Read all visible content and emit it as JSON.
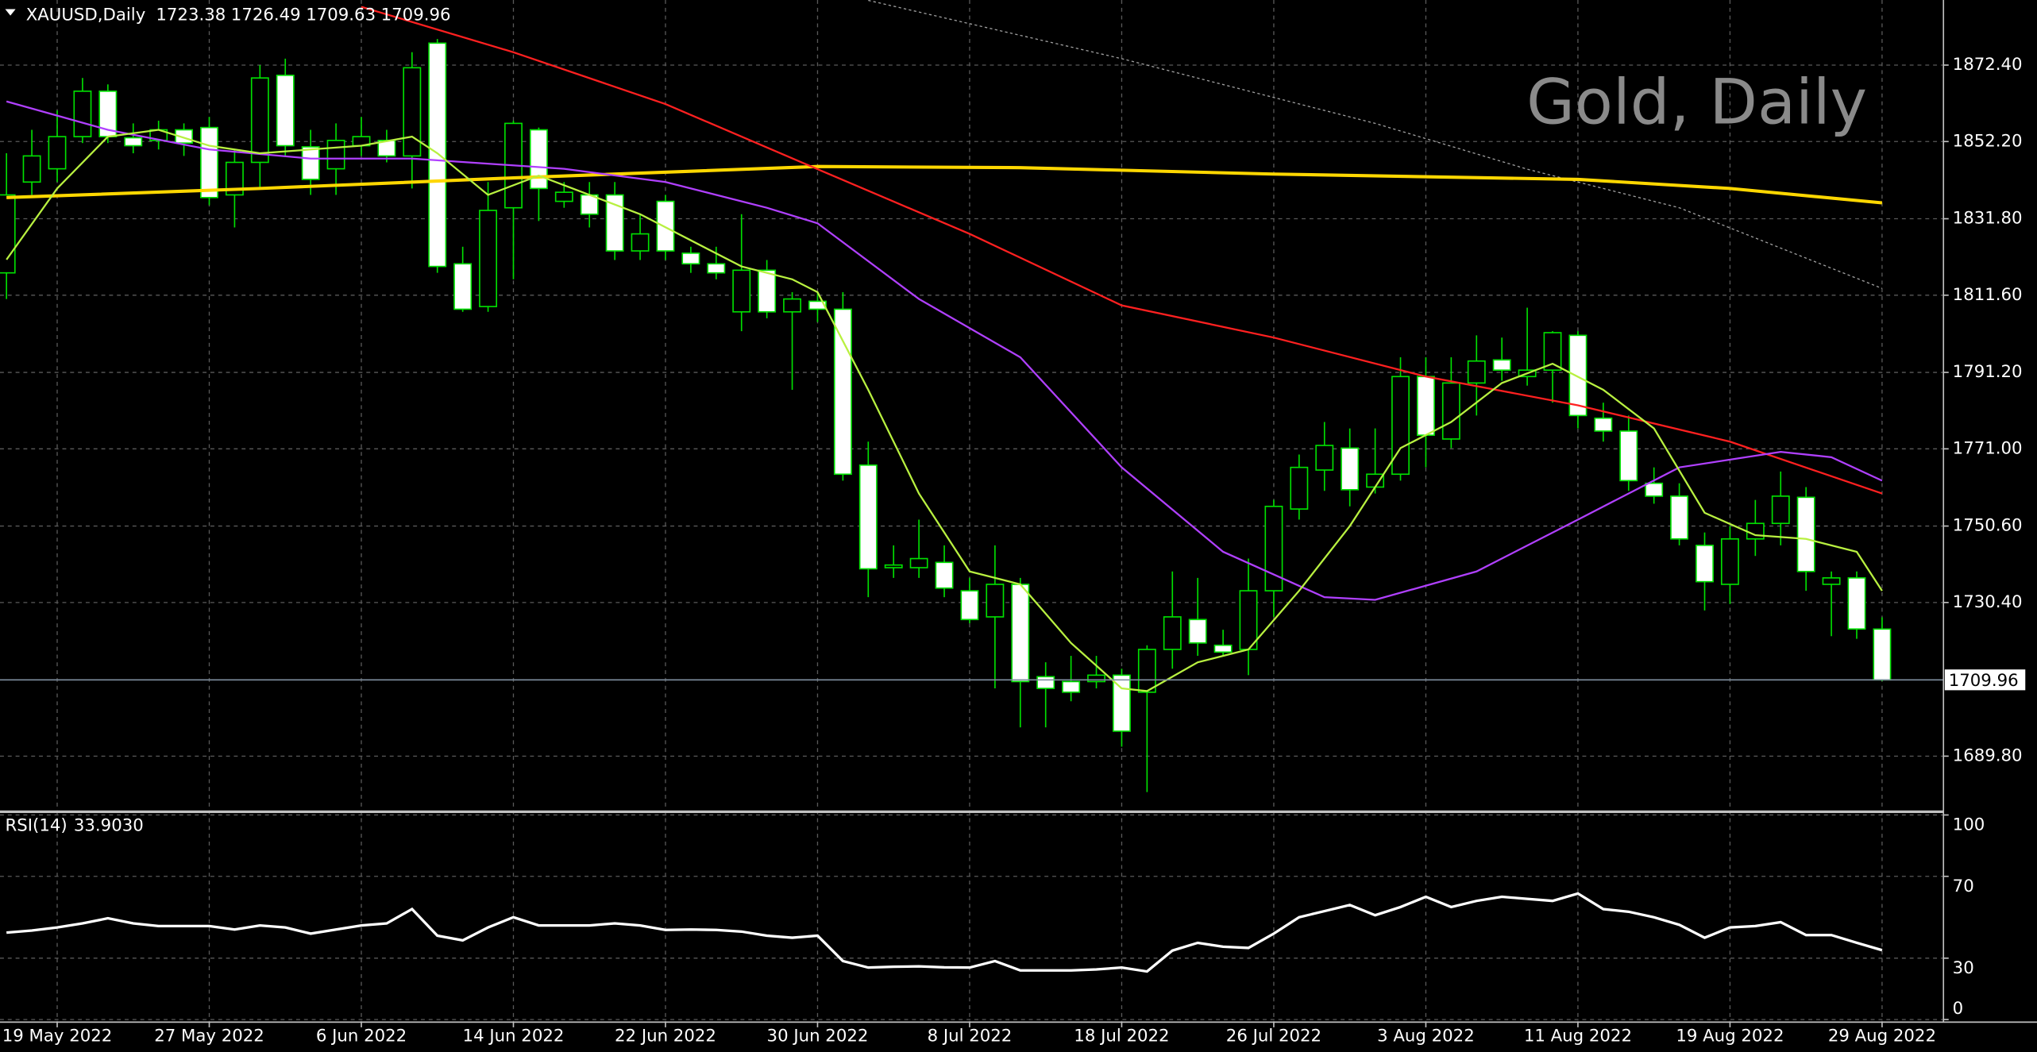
{
  "chart_data": [
    {
      "type": "candlestick",
      "title": "XAUUSD,Daily",
      "watermark": "Gold, Daily",
      "categories": [
        null,
        null,
        "19 May 2022",
        null,
        null,
        null,
        null,
        null,
        "27 May 2022",
        null,
        null,
        null,
        null,
        null,
        "6 Jun 2022",
        null,
        null,
        null,
        null,
        null,
        "14 Jun 2022",
        null,
        null,
        null,
        null,
        null,
        "22 Jun 2022",
        null,
        null,
        null,
        null,
        null,
        "30 Jun 2022",
        null,
        null,
        null,
        null,
        null,
        "8 Jul 2022",
        null,
        null,
        null,
        null,
        null,
        "18 Jul 2022",
        null,
        null,
        null,
        null,
        null,
        "26 Jul 2022",
        null,
        null,
        null,
        null,
        null,
        "3 Aug 2022",
        null,
        null,
        null,
        null,
        null,
        "11 Aug 2022",
        null,
        null,
        null,
        null,
        null,
        "19 Aug 2022",
        null,
        null,
        null,
        null,
        null,
        "29 Aug 2022"
      ],
      "open": [
        1817.5,
        1841.5,
        1845.0,
        1853.5,
        1865.5,
        1853.2,
        1852.5,
        1855.3,
        1855.9,
        1838.1,
        1846.7,
        1869.7,
        1850.8,
        1845.0,
        1851.1,
        1852.5,
        1848.4,
        1878.2,
        1819.9,
        1808.6,
        1834.7,
        1855.3,
        1836.4,
        1838.1,
        1838.1,
        1823.3,
        1836.4,
        1822.7,
        1819.9,
        1807.2,
        1818.2,
        1807.2,
        1810.0,
        1807.9,
        1766.7,
        1739.6,
        1739.6,
        1741.0,
        1733.5,
        1726.6,
        1735.2,
        1710.8,
        1709.5,
        1709.5,
        1711.2,
        1706.7,
        1718.0,
        1725.9,
        1719.1,
        1718.0,
        1733.5,
        1755.1,
        1765.4,
        1771.2,
        1760.9,
        1764.3,
        1790.1,
        1773.6,
        1788.4,
        1794.5,
        1790.1,
        1791.8,
        1801.0,
        1779.1,
        1775.7,
        1761.9,
        1758.5,
        1745.5,
        1735.2,
        1747.2,
        1751.3,
        1758.2,
        1735.2,
        1736.9,
        1723.38
      ],
      "high": [
        1849.1,
        1855.3,
        1860.4,
        1869.0,
        1867.3,
        1857.0,
        1857.7,
        1857.0,
        1858.7,
        1850.1,
        1872.4,
        1874.1,
        1855.3,
        1857.0,
        1858.7,
        1855.3,
        1875.8,
        1879.3,
        1824.4,
        1841.5,
        1857.7,
        1855.9,
        1841.5,
        1841.5,
        1841.5,
        1833.0,
        1838.1,
        1824.4,
        1824.4,
        1833.0,
        1820.9,
        1812.4,
        1812.4,
        1812.4,
        1772.9,
        1745.5,
        1752.3,
        1745.5,
        1736.9,
        1745.5,
        1736.9,
        1714.6,
        1716.3,
        1716.3,
        1712.9,
        1719.1,
        1738.6,
        1736.9,
        1723.2,
        1742.0,
        1757.5,
        1769.5,
        1778.1,
        1776.4,
        1776.4,
        1795.2,
        1795.2,
        1795.2,
        1801.0,
        1800.4,
        1808.3,
        1802.1,
        1802.1,
        1783.2,
        1779.8,
        1766.1,
        1761.9,
        1748.9,
        1750.6,
        1757.5,
        1765.0,
        1760.9,
        1738.6,
        1738.6,
        1726.49
      ],
      "low": [
        1810.6,
        1838.1,
        1841.5,
        1851.8,
        1851.8,
        1849.1,
        1850.1,
        1848.4,
        1835.4,
        1829.5,
        1839.8,
        1848.4,
        1838.1,
        1838.1,
        1848.4,
        1846.7,
        1839.8,
        1817.5,
        1807.2,
        1807.2,
        1815.8,
        1831.2,
        1834.7,
        1829.5,
        1820.9,
        1820.9,
        1820.9,
        1817.5,
        1815.8,
        1802.1,
        1805.5,
        1786.6,
        1804.5,
        1762.6,
        1731.8,
        1736.9,
        1736.9,
        1731.8,
        1724.9,
        1707.7,
        1697.4,
        1697.4,
        1704.3,
        1707.7,
        1692.3,
        1680.3,
        1712.9,
        1716.3,
        1716.3,
        1711.2,
        1726.6,
        1752.3,
        1759.9,
        1755.8,
        1759.2,
        1762.6,
        1766.1,
        1771.2,
        1779.8,
        1789.0,
        1787.7,
        1783.2,
        1776.4,
        1772.9,
        1759.9,
        1756.5,
        1745.5,
        1728.3,
        1730.0,
        1742.7,
        1745.5,
        1733.5,
        1721.5,
        1720.8,
        1709.63
      ],
      "close": [
        1838.1,
        1848.4,
        1853.5,
        1865.5,
        1853.5,
        1851.1,
        1855.3,
        1851.8,
        1837.4,
        1846.7,
        1869.0,
        1851.1,
        1842.2,
        1852.5,
        1853.5,
        1848.4,
        1871.7,
        1819.2,
        1807.9,
        1834.0,
        1857.0,
        1839.8,
        1838.8,
        1833.0,
        1823.3,
        1827.8,
        1823.3,
        1819.9,
        1817.5,
        1818.2,
        1807.2,
        1810.6,
        1807.9,
        1764.3,
        1739.3,
        1740.3,
        1742.0,
        1734.2,
        1725.9,
        1735.2,
        1709.5,
        1707.7,
        1706.7,
        1711.2,
        1696.4,
        1718.0,
        1726.6,
        1719.7,
        1717.3,
        1733.5,
        1755.8,
        1766.1,
        1771.9,
        1760.2,
        1764.3,
        1790.1,
        1774.6,
        1788.4,
        1794.2,
        1791.8,
        1791.8,
        1801.7,
        1779.8,
        1775.7,
        1762.6,
        1758.5,
        1747.2,
        1735.9,
        1747.2,
        1751.3,
        1758.5,
        1738.6,
        1736.9,
        1723.4,
        1709.96
      ],
      "up_color": "#000000",
      "down_color": "#ffffff",
      "wick_color": "#00e000",
      "lines": [
        {
          "color": "#a0a0a0",
          "style": "dotted",
          "x": [
            34,
            44,
            54,
            60,
            66,
            74
          ],
          "values": [
            1889.5,
            1874.1,
            1857.0,
            1844.9,
            1834.7,
            1813.4
          ]
        },
        {
          "color": "#ffd700",
          "x": [
            0,
            10,
            20,
            32,
            40,
            50,
            62,
            68,
            74
          ],
          "values": [
            1837.4,
            1839.8,
            1842.6,
            1845.6,
            1845.3,
            1843.6,
            1842.2,
            1839.8,
            1836.0
          ]
        },
        {
          "color": "#ff2020",
          "x": [
            14,
            20,
            26,
            32,
            38,
            44,
            50,
            56,
            62,
            68,
            74
          ],
          "values": [
            1887.8,
            1875.8,
            1862.1,
            1844.9,
            1827.8,
            1808.9,
            1800.4,
            1790.1,
            1782.5,
            1772.9,
            1759.2
          ]
        },
        {
          "color": "#b040ff",
          "x": [
            0,
            4,
            8,
            12,
            16,
            22,
            26,
            30,
            32,
            36,
            40,
            44,
            48,
            52,
            54,
            58,
            62,
            66,
            70,
            72,
            74
          ],
          "values": [
            1862.8,
            1855.3,
            1850.1,
            1847.7,
            1847.7,
            1845.0,
            1841.5,
            1834.7,
            1830.6,
            1810.6,
            1795.2,
            1766.1,
            1743.8,
            1731.8,
            1731.1,
            1738.6,
            1752.3,
            1766.1,
            1770.2,
            1768.8,
            1762.6
          ]
        },
        {
          "color": "#b8f040",
          "x": [
            0,
            2,
            4,
            6,
            8,
            10,
            12,
            14,
            16,
            17,
            19,
            21,
            23,
            25,
            27,
            29,
            31,
            32,
            34,
            36,
            38,
            40,
            42,
            44,
            45,
            47,
            49,
            51,
            53,
            55,
            57,
            59,
            61,
            63,
            65,
            67,
            69,
            71,
            73,
            74
          ],
          "values": [
            1821.0,
            1839.8,
            1853.5,
            1855.3,
            1851.1,
            1849.1,
            1850.1,
            1851.1,
            1853.5,
            1849.1,
            1838.1,
            1843.2,
            1838.1,
            1833.0,
            1826.1,
            1819.2,
            1815.8,
            1812.4,
            1786.6,
            1759.2,
            1738.6,
            1735.2,
            1719.7,
            1707.7,
            1707.0,
            1714.6,
            1718.0,
            1733.5,
            1750.6,
            1771.2,
            1778.1,
            1788.4,
            1793.5,
            1786.6,
            1776.4,
            1754.1,
            1748.2,
            1747.2,
            1743.8,
            1733.5
          ]
        }
      ],
      "ylim": [
        1675.8,
        1889.6
      ],
      "yticks": [
        {
          "value": 1689.8,
          "label": "1689.80"
        },
        {
          "value": 1730.4,
          "label": "1730.40"
        },
        {
          "value": 1750.6,
          "label": "1750.60"
        },
        {
          "value": 1771,
          "label": "1771.00"
        },
        {
          "value": 1791.2,
          "label": "1791.20"
        },
        {
          "value": 1811.6,
          "label": "1811.60"
        },
        {
          "value": 1831.8,
          "label": "1831.80"
        },
        {
          "value": 1852.2,
          "label": "1852.20"
        },
        {
          "value": 1872.4,
          "label": "1872.40"
        }
      ],
      "grid": true
    },
    {
      "type": "line",
      "title": "RSI(14)",
      "value_label": "33.9030",
      "color": "#ffffff",
      "values": [
        42.5,
        43.5,
        45,
        47,
        49.5,
        47,
        45.7,
        45.7,
        45.7,
        44,
        46,
        45,
        42,
        44,
        46,
        47,
        54,
        41,
        38.7,
        45,
        50,
        46,
        46,
        46,
        47,
        46,
        43.8,
        44,
        43.8,
        43,
        41,
        40,
        41,
        28.6,
        25.4,
        25.8,
        26,
        25.5,
        25.4,
        28.6,
        24,
        24,
        24,
        24.5,
        25.4,
        23.5,
        33.7,
        37.5,
        35.6,
        35,
        42,
        50,
        53,
        56,
        51,
        55,
        60,
        55,
        58,
        60,
        59,
        58,
        61.6,
        54,
        52.7,
        50,
        46.3,
        40,
        45,
        45.7,
        47.6,
        41.3,
        41.3,
        37.5,
        33.903
      ],
      "ylim": [
        0,
        100
      ],
      "yticks": [
        0,
        30,
        70,
        100
      ],
      "grid": true
    }
  ]
}
